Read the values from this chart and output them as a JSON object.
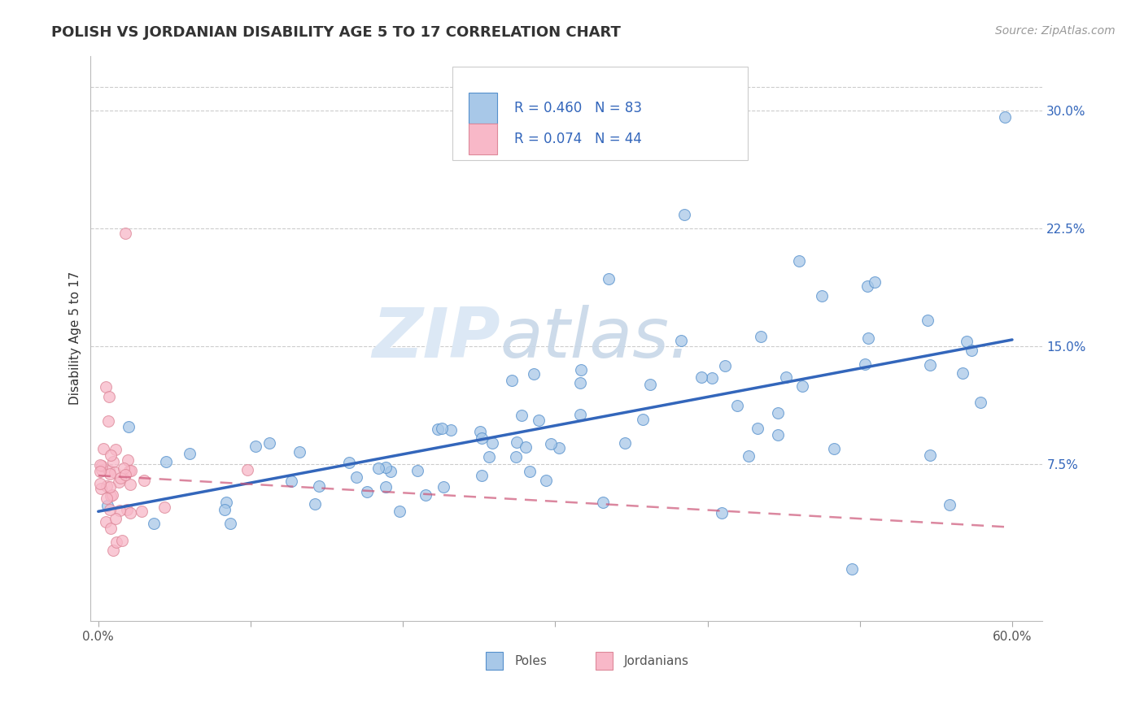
{
  "title": "POLISH VS JORDANIAN DISABILITY AGE 5 TO 17 CORRELATION CHART",
  "source": "Source: ZipAtlas.com",
  "ylabel": "Disability Age 5 to 17",
  "xlim": [
    -0.005,
    0.62
  ],
  "ylim": [
    -0.025,
    0.335
  ],
  "xtick_vals": [
    0.0,
    0.1,
    0.2,
    0.3,
    0.4,
    0.5,
    0.6
  ],
  "xticklabels": [
    "0.0%",
    "",
    "",
    "",
    "",
    "",
    "60.0%"
  ],
  "yticks_right": [
    0.075,
    0.15,
    0.225,
    0.3
  ],
  "ytick_right_labels": [
    "7.5%",
    "15.0%",
    "22.5%",
    "30.0%"
  ],
  "color_poles": "#a8c8e8",
  "color_poles_edge": "#5590cc",
  "color_poles_line": "#3366bb",
  "color_jordanians": "#f8b8c8",
  "color_jordanians_edge": "#dd8899",
  "color_jordanians_line": "#cc5577",
  "watermark_color": "#dce8f5",
  "background_color": "#ffffff",
  "grid_color": "#cccccc",
  "title_color": "#333333",
  "source_color": "#999999",
  "ylabel_color": "#333333",
  "tick_label_color": "#5590cc",
  "legend_text_color_R": "#333333",
  "legend_text_color_N": "#5590cc"
}
